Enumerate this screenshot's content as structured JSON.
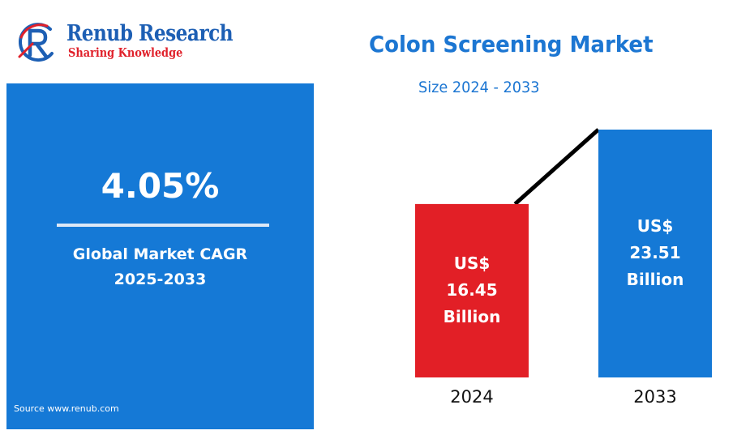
{
  "brand": {
    "name": "Renub Research",
    "tagline": "Sharing Knowledge",
    "colors": {
      "primary": "#1d5fb4",
      "accent": "#e0202a"
    }
  },
  "title": "Colon Screening Market",
  "subtitle": "Size 2024 - 2033",
  "cagr": {
    "value": "4.05%",
    "label_line1": "Global Market CAGR",
    "label_line2": "2025-2033"
  },
  "source": "Source  www.renub.com",
  "colors": {
    "panel": "#1579d6",
    "bar_2024": "#e21f26",
    "bar_2033": "#1579d6",
    "trend_line": "#000000"
  },
  "chart_data": {
    "type": "bar",
    "title": "Colon Screening Market",
    "subtitle": "Size 2024 - 2033",
    "xlabel": "",
    "ylabel": "",
    "unit": "US$ Billion",
    "categories": [
      "2024",
      "2033"
    ],
    "values": [
      16.45,
      23.51
    ],
    "ylim": [
      0,
      23.51
    ],
    "grid": false,
    "legend": "none",
    "data_labels": [
      {
        "line1": "US$",
        "line2": "16.45",
        "line3": "Billion"
      },
      {
        "line1": "US$",
        "line2": "23.51",
        "line3": "Billion"
      }
    ],
    "bar_colors": [
      "#e21f26",
      "#1579d6"
    ],
    "trend_line": true
  }
}
